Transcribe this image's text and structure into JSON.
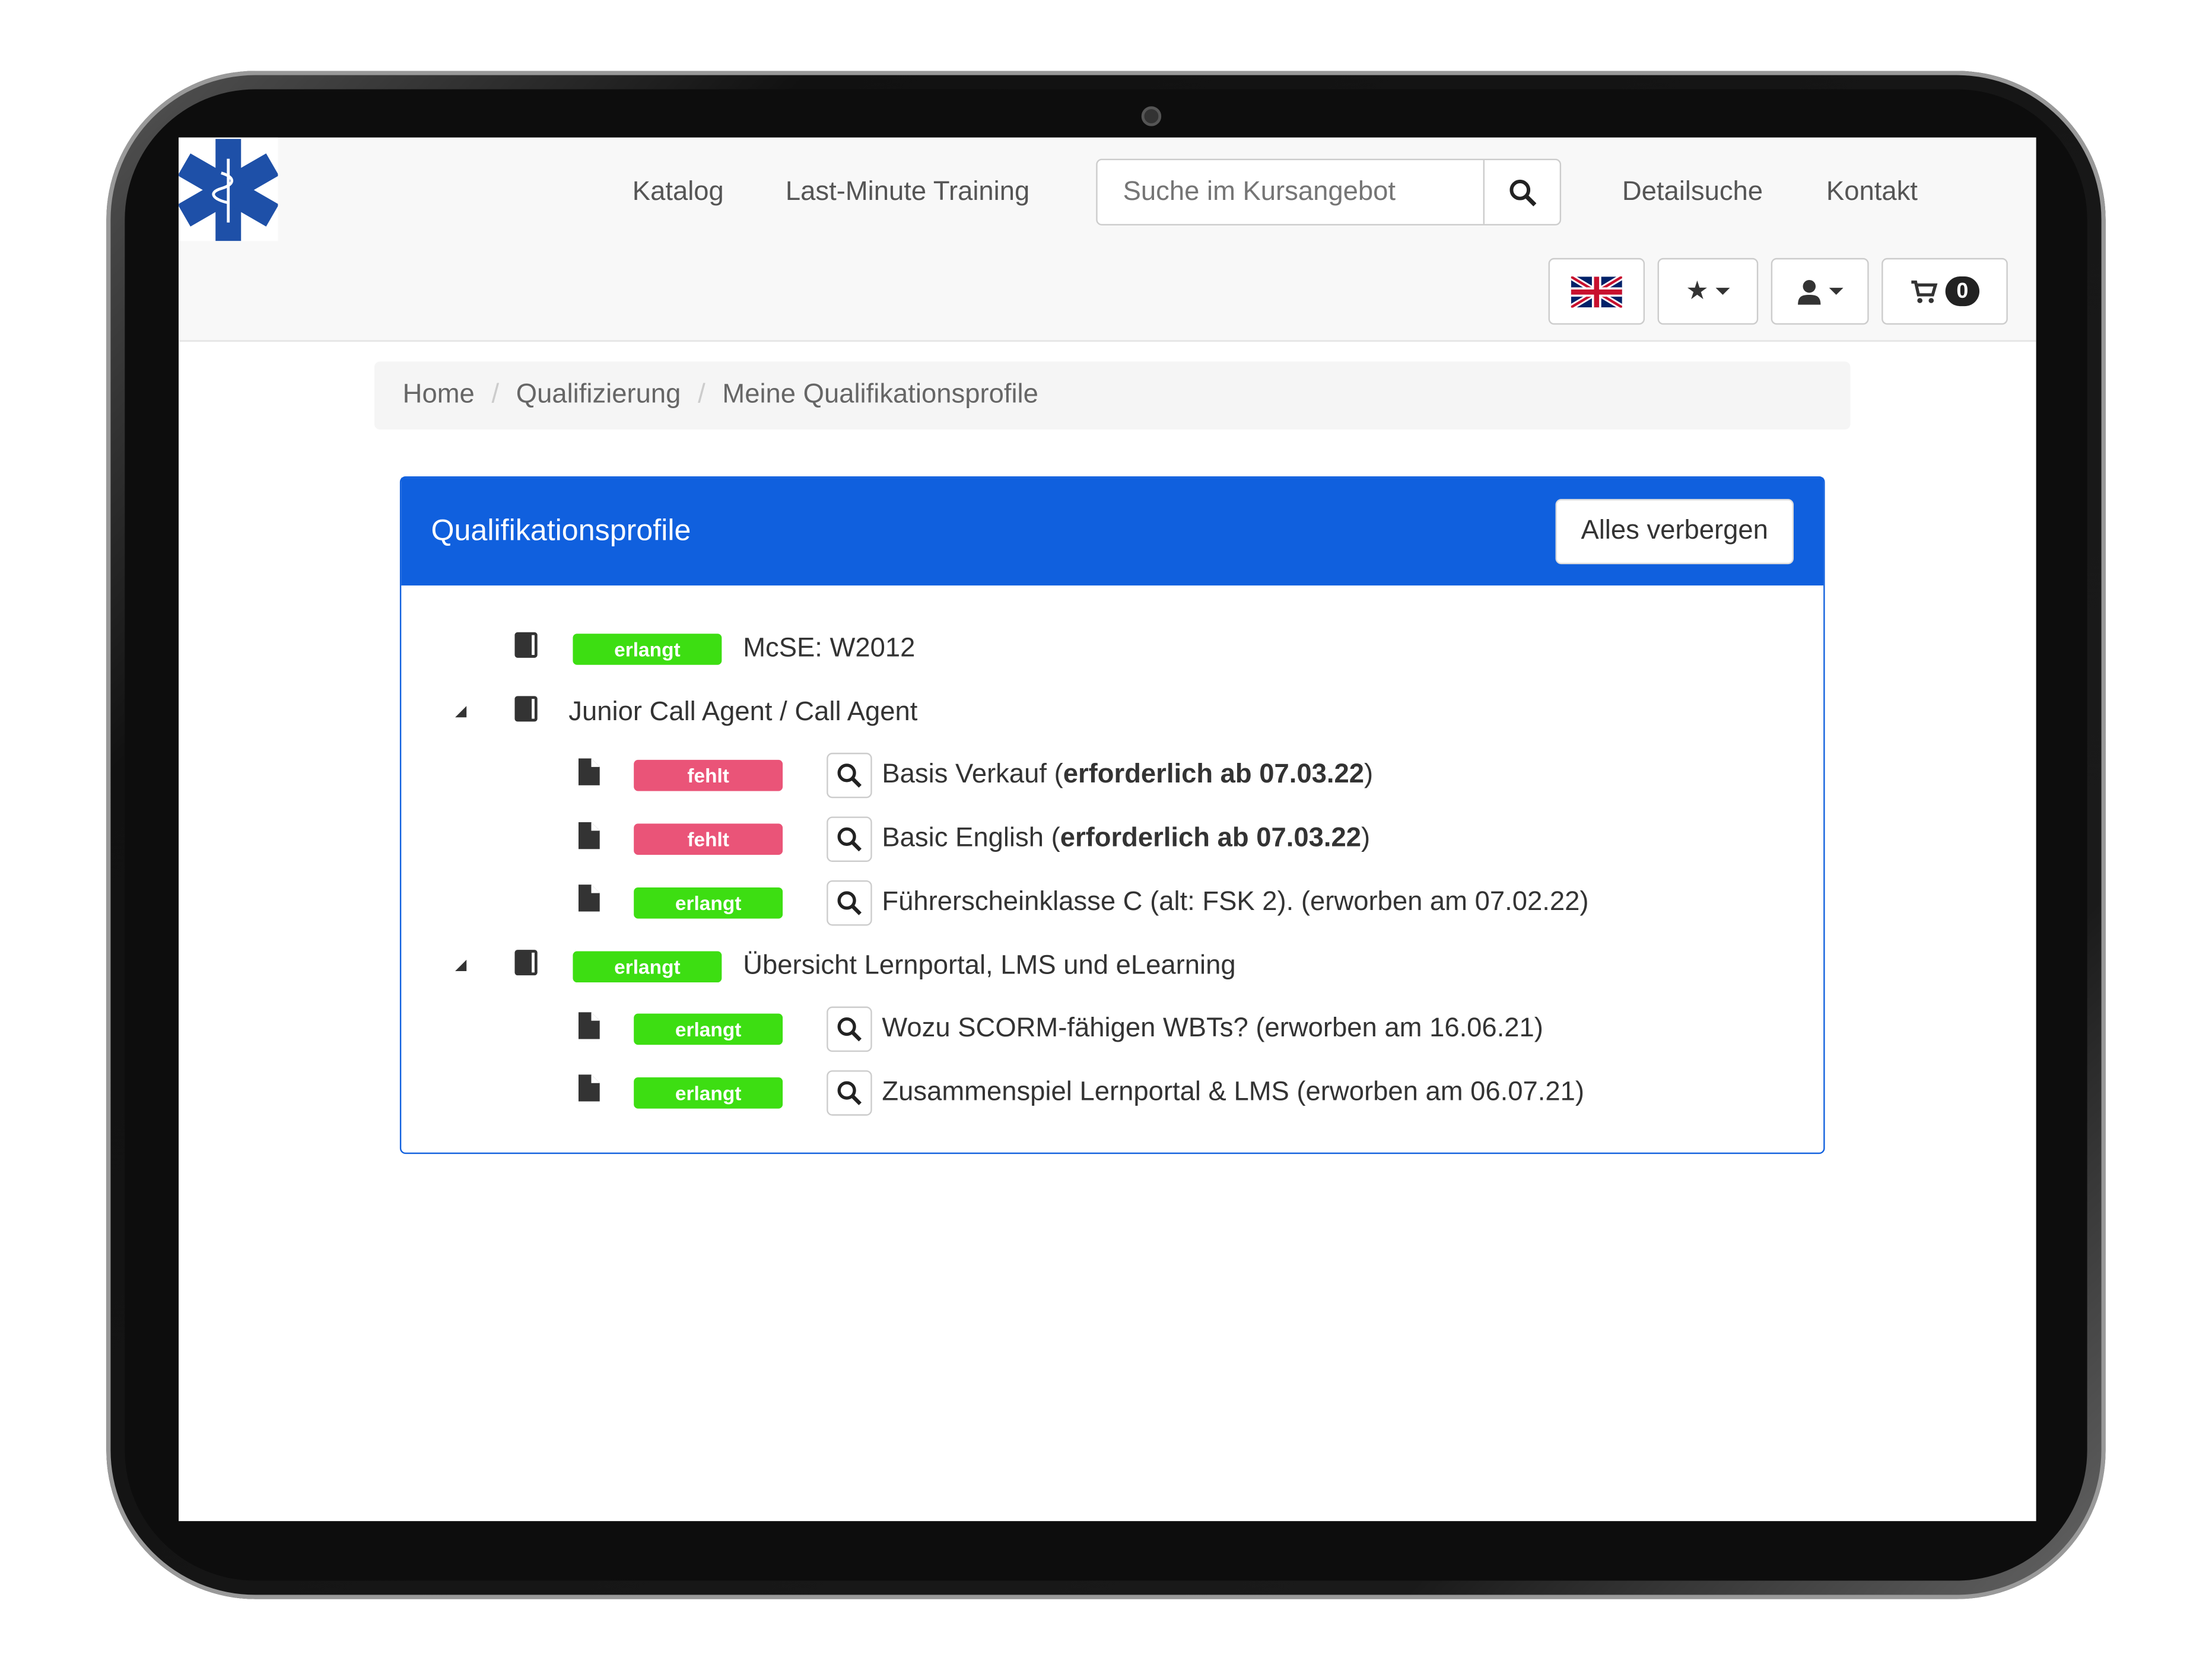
{
  "nav": {
    "items": [
      "Katalog",
      "Last-Minute Training",
      "Detailsuche",
      "Kontakt"
    ],
    "search_placeholder": "Suche im Kursangebot",
    "cart_count": "0"
  },
  "breadcrumb": [
    "Home",
    "Qualifizierung",
    "Meine Qualifikationsprofile"
  ],
  "panel": {
    "title": "Qualifikationsprofile",
    "toggle_label": "Alles verbergen"
  },
  "tree": [
    {
      "status": "erlangt",
      "text": "McSE: W2012",
      "bold": "",
      "suffix": ""
    },
    {
      "status": "",
      "text": "Junior Call Agent / Call Agent",
      "bold": "",
      "suffix": ""
    },
    {
      "status": "fehlt",
      "text": "Basis Verkauf (",
      "bold": "erforderlich ab 07.03.22",
      "suffix": ")"
    },
    {
      "status": "fehlt",
      "text": "Basic English (",
      "bold": "erforderlich ab 07.03.22",
      "suffix": ")"
    },
    {
      "status": "erlangt",
      "text": "Führerscheinklasse C (alt: FSK 2). (erworben am 07.02.22)",
      "bold": "",
      "suffix": ""
    },
    {
      "status": "erlangt",
      "text": "Übersicht Lernportal, LMS und eLearning",
      "bold": "",
      "suffix": ""
    },
    {
      "status": "erlangt",
      "text": "Wozu SCORM-fähigen WBTs? (erworben am 16.06.21)",
      "bold": "",
      "suffix": ""
    },
    {
      "status": "erlangt",
      "text": "Zusammenspiel Lernportal & LMS (erworben am 06.07.21)",
      "bold": "",
      "suffix": ""
    }
  ],
  "colors": {
    "primary": "#1060de",
    "success": "#3dde12",
    "danger": "#ea5478"
  }
}
